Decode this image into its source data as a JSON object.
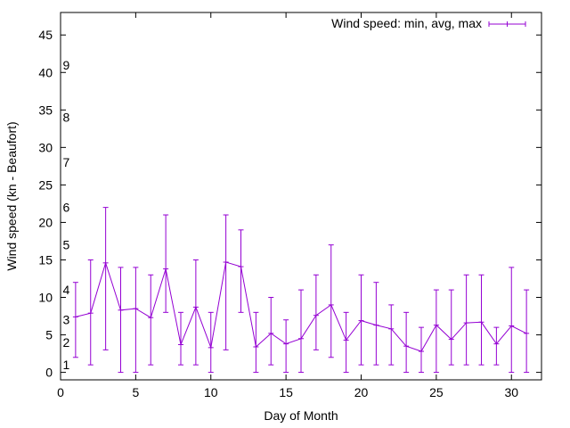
{
  "chart_data": {
    "type": "line",
    "xlabel": "Day of Month",
    "ylabel": "Wind speed (kn - Beaufort)",
    "xlim": [
      0,
      32
    ],
    "ylim": [
      -1,
      48
    ],
    "x_ticks": [
      0,
      5,
      10,
      15,
      20,
      25,
      30
    ],
    "y_ticks": [
      0,
      5,
      10,
      15,
      20,
      25,
      30,
      35,
      40,
      45
    ],
    "grid": false,
    "legend": "top-right",
    "series_color": "#9400d3",
    "series": [
      {
        "name": "Wind speed: min, avg, max",
        "x": [
          1,
          2,
          3,
          4,
          5,
          6,
          7,
          8,
          9,
          10,
          11,
          12,
          13,
          14,
          15,
          16,
          17,
          18,
          19,
          20,
          21,
          22,
          23,
          24,
          25,
          26,
          27,
          28,
          29,
          30,
          31
        ],
        "avg": [
          7.4,
          7.9,
          14.6,
          8.3,
          8.5,
          7.3,
          13.8,
          3.7,
          8.7,
          3.3,
          14.7,
          14.1,
          3.4,
          5.2,
          3.8,
          4.5,
          7.6,
          9.0,
          4.3,
          6.9,
          6.3,
          5.8,
          3.5,
          2.8,
          6.3,
          4.4,
          6.6,
          6.7,
          3.8,
          6.2,
          5.2
        ],
        "min": [
          2,
          1,
          3,
          0,
          0,
          1,
          8,
          1,
          1,
          0,
          3,
          8,
          0,
          1,
          0,
          0,
          3,
          2,
          0,
          1,
          1,
          1,
          0,
          0,
          0,
          1,
          1,
          1,
          1,
          0,
          0
        ],
        "max": [
          12,
          15,
          22,
          14,
          14,
          13,
          21,
          8,
          15,
          8,
          21,
          19,
          8,
          10,
          7,
          11,
          13,
          17,
          8,
          13,
          12,
          9,
          8,
          6,
          11,
          11,
          13,
          13,
          6,
          14,
          11
        ]
      }
    ],
    "annotations": [
      {
        "text": "1",
        "x": 0.5,
        "y": 1
      },
      {
        "text": "2",
        "x": 0.5,
        "y": 4
      },
      {
        "text": "3",
        "x": 0.5,
        "y": 7
      },
      {
        "text": "4",
        "x": 0.5,
        "y": 11
      },
      {
        "text": "5",
        "x": 0.5,
        "y": 17
      },
      {
        "text": "6",
        "x": 0.5,
        "y": 22
      },
      {
        "text": "7",
        "x": 0.5,
        "y": 28
      },
      {
        "text": "8",
        "x": 0.5,
        "y": 34
      },
      {
        "text": "9",
        "x": 0.5,
        "y": 41
      }
    ]
  }
}
